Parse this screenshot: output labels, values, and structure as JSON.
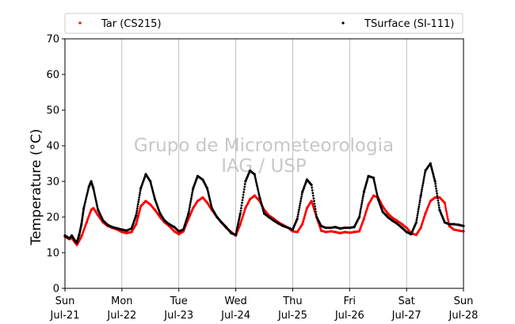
{
  "chart_data": {
    "type": "scatter",
    "title": "",
    "ylabel": "Temperature (°C)",
    "xlabel": "",
    "ylim": [
      0,
      70
    ],
    "yticks": [
      0,
      10,
      20,
      30,
      40,
      50,
      60,
      70
    ],
    "xlim": [
      0,
      7
    ],
    "x_unit": "days since Sun Jul-21 00:00",
    "xticks": [
      {
        "day": "Sun",
        "date": "Jul-21"
      },
      {
        "day": "Mon",
        "date": "Jul-22"
      },
      {
        "day": "Tue",
        "date": "Jul-23"
      },
      {
        "day": "Wed",
        "date": "Jul-24"
      },
      {
        "day": "Thu",
        "date": "Jul-25"
      },
      {
        "day": "Fri",
        "date": "Jul-26"
      },
      {
        "day": "Sat",
        "date": "Jul-27"
      },
      {
        "day": "Sun",
        "date": "Jul-28"
      }
    ],
    "grid": "vertical",
    "legend_position": "top",
    "watermark": [
      "Grupo de Micrometeorologia",
      "IAG / USP"
    ],
    "series": [
      {
        "name": "Tar (CS215)",
        "color": "#ff0000",
        "x": [
          0,
          0.08,
          0.12,
          0.17,
          0.21,
          0.29,
          0.38,
          0.46,
          0.5,
          0.58,
          0.67,
          0.75,
          0.83,
          0.92,
          1.0,
          1.08,
          1.17,
          1.25,
          1.29,
          1.33,
          1.42,
          1.5,
          1.58,
          1.67,
          1.75,
          1.83,
          1.92,
          2.0,
          2.08,
          2.17,
          2.25,
          2.33,
          2.42,
          2.5,
          2.58,
          2.67,
          2.75,
          2.83,
          2.92,
          3.0,
          3.08,
          3.17,
          3.25,
          3.33,
          3.42,
          3.5,
          3.58,
          3.67,
          3.75,
          3.83,
          3.92,
          4.0,
          4.08,
          4.17,
          4.25,
          4.33,
          4.42,
          4.5,
          4.58,
          4.67,
          4.75,
          4.83,
          4.92,
          5.0,
          5.08,
          5.17,
          5.25,
          5.33,
          5.42,
          5.5,
          5.58,
          5.67,
          5.75,
          5.83,
          5.92,
          6.0,
          6.08,
          6.17,
          6.25,
          6.33,
          6.42,
          6.5,
          6.58,
          6.67,
          6.75,
          6.83,
          6.92,
          7.0
        ],
        "y": [
          14.5,
          13.8,
          14.2,
          13.0,
          12.2,
          14.5,
          18.5,
          22.0,
          22.5,
          20.5,
          18.5,
          17.5,
          17.0,
          16.5,
          15.8,
          15.5,
          15.8,
          18.0,
          20.5,
          23.0,
          24.5,
          23.5,
          22.0,
          20.0,
          18.5,
          17.5,
          16.0,
          15.2,
          16.0,
          19.5,
          22.5,
          24.5,
          25.5,
          24.0,
          22.0,
          20.0,
          18.5,
          17.0,
          15.8,
          14.8,
          18.0,
          22.5,
          25.0,
          26.0,
          24.5,
          22.0,
          20.5,
          19.5,
          18.5,
          17.8,
          17.0,
          16.0,
          15.8,
          18.0,
          22.5,
          24.5,
          20.0,
          16.2,
          15.8,
          16.0,
          15.8,
          15.5,
          15.8,
          15.6,
          15.8,
          16.0,
          19.5,
          23.5,
          26.0,
          25.5,
          23.0,
          21.0,
          19.8,
          19.0,
          18.0,
          17.0,
          15.5,
          15.0,
          17.0,
          21.0,
          24.5,
          25.5,
          25.5,
          24.0,
          17.5,
          16.5,
          16.2,
          16.0
        ]
      },
      {
        "name": "TSurface (SI-111)",
        "color": "#000000",
        "x": [
          0,
          0.08,
          0.12,
          0.17,
          0.21,
          0.25,
          0.29,
          0.33,
          0.42,
          0.46,
          0.5,
          0.58,
          0.67,
          0.75,
          0.83,
          0.92,
          1.0,
          1.08,
          1.17,
          1.25,
          1.33,
          1.42,
          1.5,
          1.58,
          1.67,
          1.75,
          1.83,
          1.92,
          2.0,
          2.08,
          2.17,
          2.25,
          2.33,
          2.42,
          2.5,
          2.58,
          2.67,
          2.75,
          2.83,
          2.92,
          3.0,
          3.08,
          3.17,
          3.25,
          3.33,
          3.42,
          3.5,
          3.58,
          3.67,
          3.75,
          3.83,
          3.92,
          4.0,
          4.08,
          4.17,
          4.25,
          4.33,
          4.42,
          4.5,
          4.58,
          4.67,
          4.75,
          4.83,
          4.92,
          5.0,
          5.08,
          5.17,
          5.25,
          5.33,
          5.42,
          5.5,
          5.58,
          5.67,
          5.75,
          5.83,
          5.92,
          6.0,
          6.08,
          6.17,
          6.25,
          6.33,
          6.42,
          6.5,
          6.58,
          6.67,
          6.75,
          6.83,
          6.92,
          7.0
        ],
        "y": [
          14.8,
          14.0,
          14.8,
          13.5,
          12.8,
          15.0,
          18.0,
          22.5,
          28.5,
          30.0,
          28.0,
          22.0,
          19.0,
          17.8,
          17.2,
          16.8,
          16.5,
          16.2,
          16.8,
          20.5,
          28.0,
          32.0,
          30.0,
          25.0,
          21.0,
          19.0,
          18.0,
          17.2,
          16.0,
          16.5,
          21.0,
          28.0,
          31.5,
          30.5,
          28.0,
          22.5,
          20.0,
          18.5,
          17.2,
          15.5,
          15.0,
          21.0,
          30.0,
          33.0,
          32.0,
          25.5,
          21.0,
          20.0,
          19.0,
          18.2,
          17.5,
          17.0,
          16.5,
          19.5,
          27.0,
          30.5,
          29.0,
          20.0,
          17.5,
          17.0,
          17.0,
          17.2,
          16.8,
          17.0,
          17.0,
          17.2,
          20.0,
          27.0,
          31.5,
          31.0,
          25.0,
          21.5,
          20.0,
          19.0,
          18.2,
          17.0,
          15.8,
          15.2,
          18.5,
          26.0,
          33.0,
          35.0,
          30.0,
          22.0,
          18.5,
          18.0,
          18.0,
          17.8,
          17.5
        ]
      }
    ]
  }
}
